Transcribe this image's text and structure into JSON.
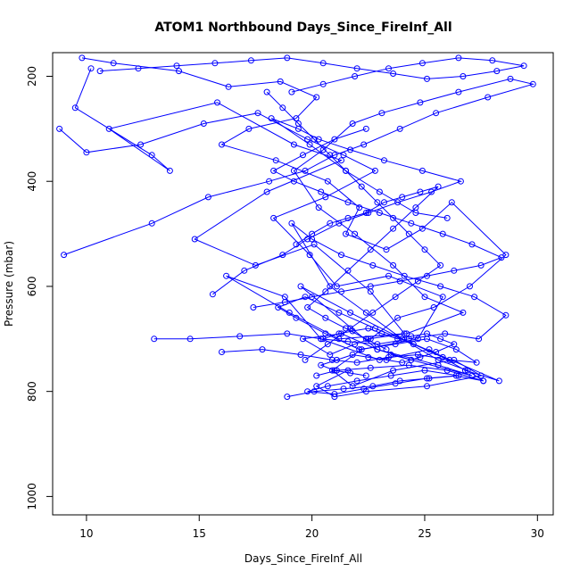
{
  "chart_data": {
    "type": "line",
    "title": "ATOM1 Northbound Days_Since_FireInf_All",
    "xlabel": "Days_Since_FireInf_All",
    "ylabel": "Pressure (mbar)",
    "xlim": [
      8.5,
      30.7
    ],
    "ylim": [
      1035,
      155
    ],
    "y_reversed": true,
    "x_ticks": [
      10,
      15,
      20,
      25,
      30
    ],
    "y_ticks": [
      200,
      400,
      600,
      800,
      1000
    ],
    "marker": "open-circle",
    "series_color": "#0000ff",
    "series": [
      {
        "x": [
          10.2,
          9.5,
          12.9,
          13.7,
          11.0,
          15.8,
          19.2,
          21.3,
          18.0,
          14.8,
          17.5,
          20.1,
          22.6,
          24.1,
          21.2,
          19.0,
          16.2,
          18.8,
          20.4,
          23.0,
          25.2,
          26.8,
          28.3,
          24.0,
          21.7,
          19.5,
          22.9,
          25.6,
          27.1,
          23.5
        ],
        "y": [
          185,
          260,
          350,
          380,
          300,
          250,
          330,
          360,
          420,
          510,
          560,
          520,
          610,
          690,
          700,
          650,
          580,
          620,
          700,
          740,
          720,
          760,
          780,
          700,
          650,
          600,
          720,
          750,
          770,
          730
        ]
      },
      {
        "x": [
          8.8,
          10.0,
          12.4,
          15.2,
          17.6,
          19.8,
          21.4,
          22.8,
          20.6,
          18.3,
          19.9,
          21.1,
          23.4,
          25.8,
          24.7,
          22.2,
          20.9,
          21.8,
          23.6,
          26.3,
          27.5,
          25.1,
          22.4,
          21.0,
          20.2,
          21.6
        ],
        "y": [
          300,
          345,
          330,
          290,
          270,
          320,
          350,
          380,
          430,
          470,
          540,
          600,
          580,
          620,
          700,
          720,
          760,
          790,
          760,
          740,
          770,
          790,
          800,
          810,
          790,
          760
        ]
      },
      {
        "x": [
          9.8,
          11.2,
          14.1,
          16.3,
          18.6,
          20.2,
          19.3,
          17.2,
          16.0,
          18.4,
          20.7,
          22.1,
          21.5,
          23.3,
          24.9,
          26.2,
          28.6,
          27.0,
          25.4,
          23.8,
          22.6,
          21.9,
          20.8,
          19.6,
          21.3,
          22.9,
          24.4
        ],
        "y": [
          165,
          175,
          190,
          220,
          210,
          240,
          280,
          300,
          330,
          360,
          400,
          450,
          500,
          530,
          490,
          440,
          540,
          600,
          640,
          660,
          700,
          710,
          730,
          700,
          690,
          720,
          740
        ]
      },
      {
        "x": [
          9.0,
          12.9,
          15.4,
          18.1,
          19.7,
          21.0,
          22.3,
          23.9,
          25.5,
          27.8,
          29.8,
          28.8,
          26.5,
          24.8,
          23.1,
          21.8,
          20.5,
          19.2,
          20.3,
          21.9,
          23.6,
          25.0,
          26.7,
          24.2,
          22.5
        ],
        "y": [
          540,
          480,
          430,
          400,
          380,
          350,
          330,
          300,
          270,
          240,
          215,
          205,
          230,
          250,
          270,
          290,
          340,
          380,
          450,
          500,
          560,
          620,
          650,
          690,
          700
        ]
      },
      {
        "x": [
          13.0,
          14.6,
          16.8,
          18.9,
          20.4,
          21.6,
          22.9,
          24.3,
          25.9,
          27.4,
          28.6,
          27.2,
          25.7,
          24.1,
          22.7,
          21.3,
          20.0,
          19.1,
          20.8,
          22.4,
          24.0,
          25.6,
          26.9,
          27.6
        ],
        "y": [
          700,
          700,
          695,
          690,
          700,
          705,
          710,
          700,
          690,
          700,
          655,
          620,
          600,
          580,
          560,
          540,
          510,
          480,
          600,
          650,
          700,
          740,
          760,
          780
        ]
      },
      {
        "x": [
          15.6,
          17.0,
          18.7,
          19.8,
          21.2,
          22.5,
          23.8,
          25.3,
          26.6,
          24.9,
          23.2,
          21.7,
          20.3,
          19.4,
          18.2,
          19.9,
          21.5,
          23.0,
          24.6,
          26.0
        ],
        "y": [
          615,
          570,
          540,
          510,
          480,
          460,
          440,
          420,
          400,
          380,
          360,
          340,
          320,
          300,
          280,
          330,
          380,
          420,
          460,
          470
        ]
      },
      {
        "x": [
          16.0,
          17.8,
          19.5,
          20.9,
          22.0,
          23.4,
          24.7,
          26.1,
          27.3,
          26.4,
          25.1,
          23.7,
          22.1,
          20.6,
          19.3,
          18.5,
          19.7,
          21.2,
          22.8,
          24.5,
          25.8
        ],
        "y": [
          725,
          720,
          730,
          740,
          745,
          735,
          730,
          740,
          745,
          720,
          700,
          710,
          720,
          690,
          660,
          640,
          620,
          650,
          680,
          710,
          735
        ]
      },
      {
        "x": [
          18.9,
          20.1,
          21.4,
          22.7,
          23.9,
          25.2,
          26.5,
          25.0,
          23.5,
          22.0,
          20.7,
          19.8,
          21.0,
          22.3,
          23.7,
          25.1,
          26.4,
          27.6,
          26.0,
          24.3,
          22.6,
          21.1,
          20.2
        ],
        "y": [
          810,
          800,
          795,
          790,
          780,
          775,
          770,
          760,
          770,
          780,
          790,
          800,
          805,
          795,
          785,
          775,
          770,
          780,
          760,
          750,
          755,
          760,
          770
        ]
      },
      {
        "x": [
          17.4,
          18.8,
          20.0,
          21.3,
          22.6,
          23.9,
          25.1,
          26.3,
          27.5,
          28.4,
          27.1,
          25.8,
          24.4,
          23.0,
          21.6,
          20.4,
          19.2,
          18.3,
          19.6,
          21.0,
          22.4
        ],
        "y": [
          640,
          630,
          620,
          610,
          600,
          590,
          580,
          570,
          560,
          545,
          520,
          500,
          480,
          460,
          440,
          420,
          400,
          380,
          350,
          320,
          300
        ]
      },
      {
        "x": [
          10.6,
          12.3,
          14.0,
          15.7,
          17.3,
          18.9,
          20.5,
          22.0,
          23.6,
          25.1,
          26.7,
          28.2,
          29.4,
          28.0,
          26.5,
          24.9,
          23.4,
          21.9,
          20.5,
          19.1
        ],
        "y": [
          190,
          185,
          180,
          175,
          170,
          165,
          175,
          185,
          195,
          205,
          200,
          190,
          180,
          170,
          165,
          175,
          185,
          200,
          215,
          230
        ]
      },
      {
        "x": [
          20.5,
          21.2,
          21.8,
          22.5,
          23.1,
          23.8,
          24.4,
          25.1,
          25.7,
          26.3,
          25.5,
          24.8,
          24.0,
          23.3,
          22.5,
          21.8,
          21.1,
          20.4,
          21.0,
          21.7,
          22.4
        ],
        "y": [
          700,
          690,
          685,
          680,
          690,
          700,
          695,
          690,
          700,
          710,
          725,
          735,
          745,
          740,
          735,
          730,
          740,
          750,
          760,
          765,
          770
        ]
      },
      {
        "x": [
          19.3,
          20.0,
          20.8,
          21.6,
          22.4,
          23.2,
          24.0,
          24.8,
          25.6,
          24.6,
          23.6,
          22.6,
          21.6,
          20.6,
          19.8,
          20.6,
          21.5,
          22.4,
          23.3
        ],
        "y": [
          520,
          500,
          480,
          470,
          460,
          440,
          430,
          420,
          410,
          450,
          490,
          530,
          570,
          610,
          640,
          660,
          680,
          700,
          720
        ]
      },
      {
        "x": [
          18.0,
          18.7,
          19.4,
          20.1,
          20.8,
          21.5,
          22.2,
          22.9,
          23.6,
          24.3,
          25.0,
          25.7,
          24.7,
          23.7,
          22.7,
          21.7,
          20.7,
          19.7
        ],
        "y": [
          230,
          260,
          290,
          320,
          350,
          380,
          410,
          440,
          470,
          500,
          530,
          560,
          590,
          620,
          650,
          680,
          710,
          740
        ]
      }
    ]
  }
}
